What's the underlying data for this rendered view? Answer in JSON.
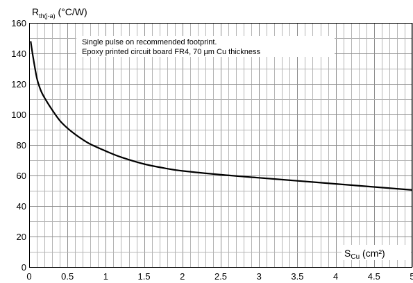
{
  "chart_data": {
    "type": "line",
    "x_axis": {
      "label_main": "S",
      "label_sub": "Cu",
      "label_unit": " (cm²)",
      "min": 0,
      "max": 5,
      "ticks": [
        0,
        0.5,
        1,
        1.5,
        2,
        2.5,
        3,
        3.5,
        4,
        4.5,
        5
      ],
      "tick_labels": [
        "0",
        "0.5",
        "1",
        "1.5",
        "2",
        "2.5",
        "3",
        "3.5",
        "4",
        "4.5",
        "5"
      ],
      "minor_step": 0.1
    },
    "y_axis": {
      "label_main": "R",
      "label_sub": "th(j-a)",
      "label_unit": " (°C/W)",
      "min": 0,
      "max": 160,
      "ticks": [
        0,
        20,
        40,
        60,
        80,
        100,
        120,
        140,
        160
      ],
      "tick_labels": [
        "0",
        "20",
        "40",
        "60",
        "80",
        "100",
        "120",
        "140",
        "160"
      ],
      "minor_step": 10
    },
    "grid": true,
    "annotation": {
      "line1": "Single pulse on recommended footprint.",
      "line2": "Epoxy printed circuit board FR4, 70 µm Cu thickness"
    },
    "series": [
      {
        "x": [
          0.02,
          0.05,
          0.1,
          0.15,
          0.2,
          0.3,
          0.4,
          0.5,
          0.6,
          0.7,
          0.8,
          1.0,
          1.2,
          1.5,
          1.8,
          2.0,
          2.5,
          3.0,
          3.5,
          4.0,
          4.5,
          5.0
        ],
        "y": [
          148,
          138,
          124,
          116,
          111,
          103,
          96,
          91,
          87,
          83.5,
          80.5,
          76,
          72,
          67.5,
          64.5,
          63,
          60.5,
          58.5,
          56.5,
          54.5,
          52.5,
          50.5
        ],
        "color": "#000000"
      }
    ]
  }
}
